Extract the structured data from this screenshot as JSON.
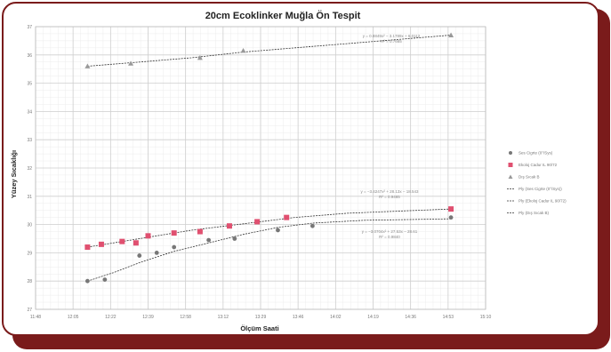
{
  "chart_data": {
    "type": "scatter",
    "title": "20cm Ecoklinker Muğla Ön Tespit",
    "xlabel": "Ölçüm Saati",
    "ylabel": "Yüzey Sıcaklığı",
    "xlim": [
      11.8,
      14.4
    ],
    "ylim": [
      27,
      37
    ],
    "xticks": [
      "11:48",
      "12:05",
      "12:22",
      "12:39",
      "12:58",
      "13:12",
      "13:29",
      "13:46",
      "14:02",
      "14:19",
      "14:36",
      "14:53",
      "15:10"
    ],
    "yticks": [
      "27",
      "28",
      "29",
      "30",
      "31",
      "32",
      "33",
      "34",
      "35",
      "36",
      "37"
    ],
    "grid": true,
    "legend_position": "right",
    "series": [
      {
        "name": "Ses Cigrte (0°/Sys)",
        "color": "#777777",
        "marker": "circle",
        "x": [
          12.1,
          12.2,
          12.4,
          12.5,
          12.6,
          12.8,
          12.95,
          13.2,
          13.4,
          14.2
        ],
        "y": [
          28.0,
          28.05,
          28.9,
          29.0,
          29.2,
          29.45,
          29.5,
          29.8,
          29.95,
          30.25
        ]
      },
      {
        "name": "Ekoloj Cadur IL 90/72",
        "color": "#e05070",
        "marker": "square",
        "x": [
          12.1,
          12.18,
          12.3,
          12.38,
          12.45,
          12.6,
          12.75,
          12.92,
          13.08,
          13.25,
          14.2
        ],
        "y": [
          29.2,
          29.3,
          29.4,
          29.35,
          29.6,
          29.7,
          29.75,
          29.95,
          30.1,
          30.25,
          30.55
        ]
      },
      {
        "name": "Dış Sıcak B",
        "color": "#999999",
        "marker": "triangle",
        "x": [
          12.1,
          12.35,
          12.75,
          13.0,
          14.2
        ],
        "y": [
          35.6,
          35.7,
          35.9,
          36.15,
          36.7
        ]
      },
      {
        "name": "Ply (Ses Cigrte (0°/Sys))",
        "color": "#333333",
        "marker": "line",
        "fit": [
          [
            12.1,
            28.0
          ],
          [
            12.25,
            28.3
          ],
          [
            12.4,
            28.65
          ],
          [
            12.6,
            29.05
          ],
          [
            12.8,
            29.35
          ],
          [
            13.0,
            29.65
          ],
          [
            13.2,
            29.9
          ],
          [
            13.4,
            30.05
          ],
          [
            13.7,
            30.15
          ],
          [
            14.2,
            30.2
          ]
        ]
      },
      {
        "name": "Ply (Ekoloj Cadur IL 90/72)",
        "color": "#333333",
        "marker": "line",
        "fit": [
          [
            12.1,
            29.2
          ],
          [
            12.3,
            29.4
          ],
          [
            12.5,
            29.6
          ],
          [
            12.7,
            29.8
          ],
          [
            12.9,
            29.95
          ],
          [
            13.1,
            30.1
          ],
          [
            13.3,
            30.25
          ],
          [
            13.6,
            30.4
          ],
          [
            14.2,
            30.55
          ]
        ]
      },
      {
        "name": "Ply (Dış Sıcak B)",
        "color": "#333333",
        "marker": "line",
        "fit": [
          [
            12.1,
            35.6
          ],
          [
            12.4,
            35.75
          ],
          [
            12.7,
            35.9
          ],
          [
            13.0,
            36.1
          ],
          [
            13.3,
            36.25
          ],
          [
            13.6,
            36.4
          ],
          [
            13.9,
            36.55
          ],
          [
            14.2,
            36.7
          ]
        ]
      }
    ],
    "annotations": [
      {
        "text1": "y = 0.8849x² − 3.1789x + 6.0112",
        "text2": "R² = 0.7665",
        "anchor": "top"
      },
      {
        "text1": "y = −3.4247x² + 28.13x − 18.543",
        "text2": "R² = 0.9465",
        "anchor": "middle"
      },
      {
        "text1": "y = −3.0704x² + 27.53x − 28.61",
        "text2": "R² = 0.9840",
        "anchor": "lower"
      }
    ]
  }
}
